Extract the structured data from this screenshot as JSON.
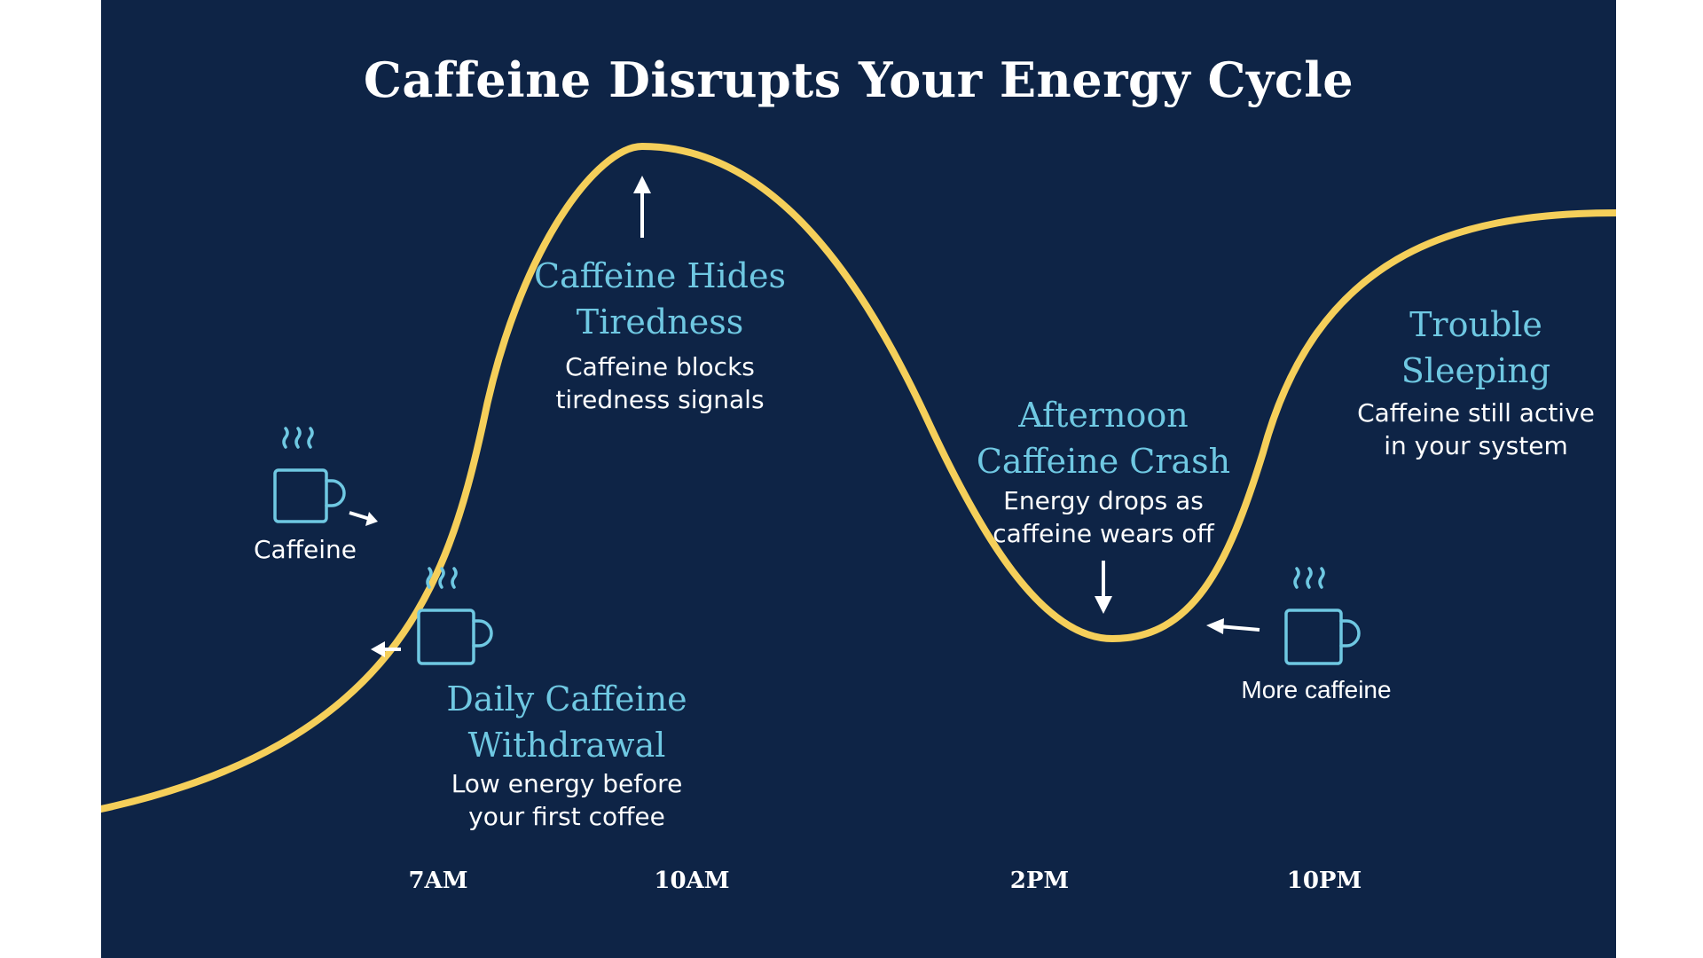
{
  "title": "Caffeine Disrupts Your Energy Cycle",
  "annotations": {
    "caffeine_hides": {
      "heading_line1": "Caffeine Hides",
      "heading_line2": "Tiredness",
      "desc_line1": "Caffeine blocks",
      "desc_line2": "tiredness signals"
    },
    "afternoon_crash": {
      "heading_line1": "Afternoon",
      "heading_line2": "Caffeine Crash",
      "desc_line1": "Energy drops as",
      "desc_line2": "caffeine wears off"
    },
    "trouble_sleeping": {
      "heading_line1": "Trouble",
      "heading_line2": "Sleeping",
      "desc_line1": "Caffeine still active",
      "desc_line2": "in your system"
    },
    "withdrawal": {
      "heading_line1": "Daily Caffeine",
      "heading_line2": "Withdrawal",
      "desc_line1": "Low energy before",
      "desc_line2": "your first coffee"
    }
  },
  "mugs": {
    "caffeine": {
      "label": "Caffeine",
      "icon": "coffee-mug-icon"
    },
    "withdrawal": {
      "icon": "coffee-mug-icon"
    },
    "more_caffeine": {
      "label": "More caffeine",
      "icon": "coffee-mug-icon"
    }
  },
  "time_labels": [
    "7AM",
    "10AM",
    "2PM",
    "10PM"
  ],
  "colors": {
    "background": "#0e2446",
    "curve": "#f5cf5a",
    "heading": "#6fc8e2",
    "text": "#ffffff"
  }
}
